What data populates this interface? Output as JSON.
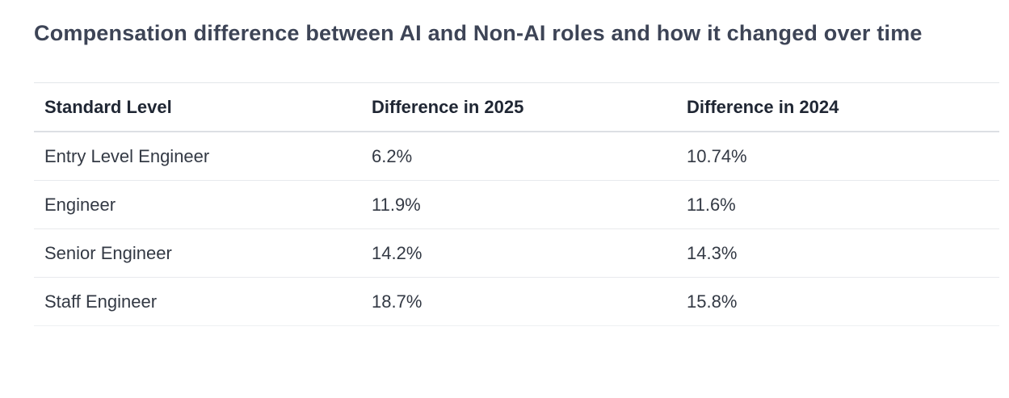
{
  "page": {
    "title": "Compensation difference between AI and Non-AI roles and how it changed over time"
  },
  "table": {
    "columns": {
      "level": "Standard Level",
      "diff_2025": "Difference in 2025",
      "diff_2024": "Difference in 2024"
    },
    "rows": [
      {
        "level": "Entry Level Engineer",
        "diff_2025": "6.2%",
        "diff_2024": "10.74%"
      },
      {
        "level": "Engineer",
        "diff_2025": "11.9%",
        "diff_2024": "11.6%"
      },
      {
        "level": "Senior Engineer",
        "diff_2025": "14.2%",
        "diff_2024": "14.3%"
      },
      {
        "level": "Staff Engineer",
        "diff_2025": "18.7%",
        "diff_2024": "15.8%"
      }
    ]
  },
  "colors": {
    "title_text": "#3d4456",
    "header_text": "#1f2633",
    "body_text": "#333944",
    "row_divider": "#e8eaed",
    "header_divider": "#dcdfe4",
    "background": "#ffffff"
  },
  "chart_data": {
    "type": "table",
    "title": "Compensation difference between AI and Non-AI roles and how it changed over time",
    "categories": [
      "Entry Level Engineer",
      "Engineer",
      "Senior Engineer",
      "Staff Engineer"
    ],
    "series": [
      {
        "name": "Difference in 2025",
        "values": [
          6.2,
          11.9,
          14.2,
          18.7
        ],
        "unit": "%"
      },
      {
        "name": "Difference in 2024",
        "values": [
          10.74,
          11.6,
          14.3,
          15.8
        ],
        "unit": "%"
      }
    ],
    "columns": [
      "Standard Level",
      "Difference in 2025",
      "Difference in 2024"
    ],
    "grid": "horizontal-row-dividers",
    "legend_position": "none"
  }
}
